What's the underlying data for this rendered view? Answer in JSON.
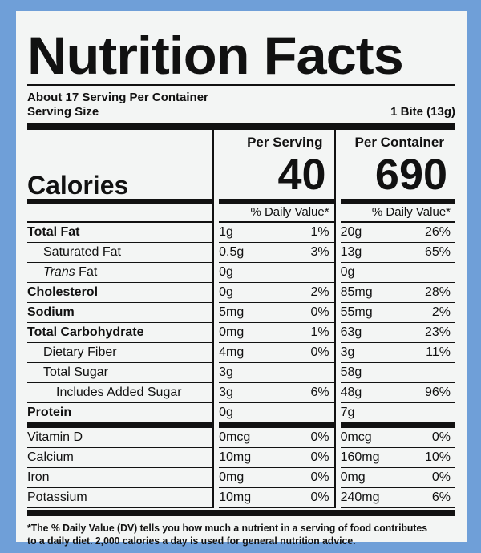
{
  "title": "Nutrition Facts",
  "servings_per_container": "About 17 Serving Per Container",
  "serving_size_label": "Serving Size",
  "serving_size_value": "1 Bite (13g)",
  "calories_label": "Calories",
  "per_serving": {
    "label": "Per Serving",
    "calories": "40",
    "dv_header": "% Daily Value*"
  },
  "per_container": {
    "label": "Per Container",
    "calories": "690",
    "dv_header": "% Daily Value*"
  },
  "rows": [
    {
      "name": "Total Fat",
      "ps_amt": "1g",
      "ps_dv": "1%",
      "pc_amt": "20g",
      "pc_dv": "26%"
    },
    {
      "name": "Saturated Fat",
      "ps_amt": "0.5g",
      "ps_dv": "3%",
      "pc_amt": "13g",
      "pc_dv": "65%"
    },
    {
      "name_italic": "Trans",
      "name_rest": " Fat",
      "ps_amt": "0g",
      "ps_dv": "",
      "pc_amt": "0g",
      "pc_dv": ""
    },
    {
      "name": "Cholesterol",
      "ps_amt": "0g",
      "ps_dv": "2%",
      "pc_amt": "85mg",
      "pc_dv": "28%"
    },
    {
      "name": "Sodium",
      "ps_amt": "5mg",
      "ps_dv": "0%",
      "pc_amt": "55mg",
      "pc_dv": "2%"
    },
    {
      "name": "Total Carbohydrate",
      "ps_amt": "0mg",
      "ps_dv": "1%",
      "pc_amt": "63g",
      "pc_dv": "23%"
    },
    {
      "name": "Dietary Fiber",
      "ps_amt": "4mg",
      "ps_dv": "0%",
      "pc_amt": "3g",
      "pc_dv": "11%"
    },
    {
      "name": "Total Sugar",
      "ps_amt": "3g",
      "ps_dv": "",
      "pc_amt": "58g",
      "pc_dv": ""
    },
    {
      "name": "Includes Added Sugar",
      "ps_amt": "3g",
      "ps_dv": "6%",
      "pc_amt": "48g",
      "pc_dv": "96%"
    },
    {
      "name": "Protein",
      "ps_amt": "0g",
      "ps_dv": "",
      "pc_amt": "7g",
      "pc_dv": ""
    },
    {
      "name": "Vitamin D",
      "ps_amt": "0mcg",
      "ps_dv": "0%",
      "pc_amt": "0mcg",
      "pc_dv": "0%"
    },
    {
      "name": "Calcium",
      "ps_amt": "10mg",
      "ps_dv": "0%",
      "pc_amt": "160mg",
      "pc_dv": "10%"
    },
    {
      "name": "Iron",
      "ps_amt": "0mg",
      "ps_dv": "0%",
      "pc_amt": "0mg",
      "pc_dv": "0%"
    },
    {
      "name": "Potassium",
      "ps_amt": "10mg",
      "ps_dv": "0%",
      "pc_amt": "240mg",
      "pc_dv": "6%"
    }
  ],
  "footnote": "*The % Daily Value (DV) tells you how much a nutrient in a serving of food contributes to a daily diet. 2,000 calories a day is used for general nutrition advice."
}
